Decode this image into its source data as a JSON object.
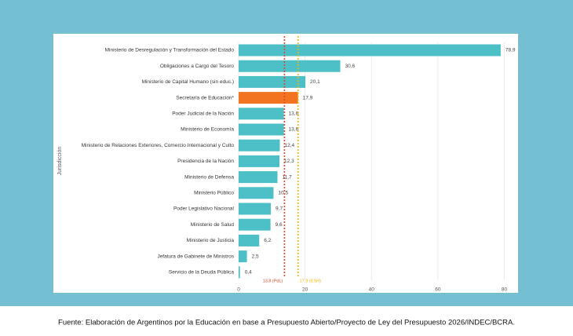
{
  "chart_data": {
    "type": "hbar",
    "y_label": "Jurisdicción",
    "categories": [
      "Ministerio de Desregulación y Transformación del Estado",
      "Obligaciones a Cargo del Tesoro",
      "Ministerio de Capital Humano (sin educ.)",
      "Secretaría de Educación*",
      "Poder Judicial de la Nación",
      "Ministerio de Economía",
      "Ministerio de Relaciones Exteriores, Comercio Internacional y Culto",
      "Presidencia de la Nación",
      "Ministerio de Defensa",
      "Ministerio Público",
      "Poder Legislativo Nacional",
      "Ministerio de Salud",
      "Ministerio de Justicia",
      "Jefatura de Gabinete de Ministros",
      "Servicio de la Deuda Pública"
    ],
    "values": [
      78.9,
      30.6,
      20.1,
      17.9,
      13.6,
      13.6,
      12.4,
      12.3,
      11.7,
      10.5,
      9.7,
      9.6,
      6.2,
      2.5,
      0.4
    ],
    "value_labels": [
      "78,9",
      "30,6",
      "20,1",
      "17,9",
      "13,6",
      "13,6",
      "12,4",
      "12,3",
      "11,7",
      "10,5",
      "9,7",
      "9,6",
      "6,2",
      "2,5",
      "0,4"
    ],
    "colors": [
      "#4cbfc7",
      "#4cbfc7",
      "#4cbfc7",
      "#f27420",
      "#4cbfc7",
      "#4cbfc7",
      "#4cbfc7",
      "#4cbfc7",
      "#4cbfc7",
      "#4cbfc7",
      "#4cbfc7",
      "#4cbfc7",
      "#4cbfc7",
      "#4cbfc7",
      "#4cbfc7"
    ],
    "xlim": [
      0,
      82
    ],
    "xticks": [
      0,
      20,
      40,
      60,
      80
    ],
    "grid": true,
    "reference_lines": [
      {
        "value": 13.8,
        "label": "13,8 (PdL)",
        "color": "#e0472c"
      },
      {
        "value": 17.9,
        "label": "17,9 (ESH)",
        "color": "#f2b705"
      }
    ]
  },
  "source": "Fuente: Elaboración de Argentinos por la Educación en base a Presupuesto Abierto/Proyecto de Ley del Presupuesto 2026/INDEC/BCRA."
}
